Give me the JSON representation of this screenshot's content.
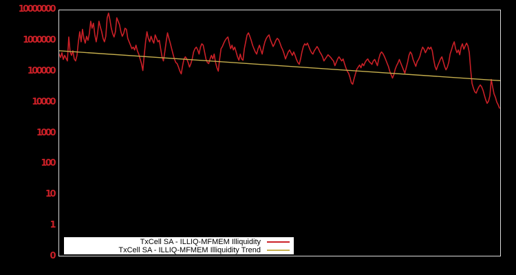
{
  "colors": {
    "background": "#000000",
    "plot_border": "#dcdcdc",
    "series_red": "#cb2027",
    "trend_yellow": "#c5ae4d",
    "axis_label_red": "#cb2027",
    "legend_background": "#ffffff",
    "legend_text": "#000000"
  },
  "chart_data": {
    "type": "line",
    "title": "",
    "xlabel": "",
    "ylabel": "",
    "x_axis": {
      "tick_labels_visible": false
    },
    "y_axis": {
      "scale": "log",
      "tick_labels": [
        "10000000",
        "1000000",
        "100000",
        "10000",
        "1000",
        "100",
        "10",
        "1",
        "0"
      ],
      "top_value": 10000000,
      "decades_shown": 8,
      "grid": false
    },
    "legend": {
      "position": "bottom-center",
      "entries": [
        {
          "label": "TxCell SA - ILLIQ-MFMEM Illiquidity",
          "color": "#cb2027"
        },
        {
          "label": "TxCell SA - ILLIQ-MFMEM Illiquidity Trend",
          "color": "#c5ae4d"
        }
      ]
    },
    "series": [
      {
        "name": "TxCell SA - ILLIQ-MFMEM Illiquidity",
        "color": "#cb2027",
        "values": [
          375000,
          290000,
          415000,
          250000,
          340000,
          275000,
          224000,
          1350000,
          440000,
          340000,
          480000,
          260000,
          224000,
          340000,
          940000,
          2000000,
          940000,
          2400000,
          1220000,
          850000,
          1420000,
          1050000,
          1750000,
          4400000,
          2600000,
          3800000,
          1580000,
          940000,
          1750000,
          4400000,
          2900000,
          2000000,
          1220000,
          940000,
          1420000,
          5700000,
          8100000,
          4900000,
          2600000,
          1750000,
          1350000,
          2000000,
          5700000,
          4400000,
          3400000,
          2000000,
          1420000,
          1750000,
          2600000,
          2400000,
          1220000,
          940000,
          730000,
          560000,
          630000,
          510000,
          730000,
          480000,
          375000,
          260000,
          183000,
          109000,
          340000,
          940000,
          2000000,
          1220000,
          940000,
          1420000,
          1050000,
          850000,
          1580000,
          1220000,
          940000,
          1050000,
          560000,
          305000,
          224000,
          440000,
          940000,
          1840000,
          1220000,
          850000,
          560000,
          375000,
          260000,
          200000,
          183000,
          141000,
          104000,
          85000,
          157000,
          260000,
          305000,
          260000,
          200000,
          141000,
          183000,
          260000,
          440000,
          560000,
          630000,
          510000,
          375000,
          630000,
          810000,
          730000,
          440000,
          260000,
          200000,
          183000,
          260000,
          340000,
          260000,
          375000,
          200000,
          134000,
          104000,
          260000,
          560000,
          660000,
          850000,
          1050000,
          1220000,
          1350000,
          850000,
          560000,
          730000,
          510000,
          630000,
          440000,
          305000,
          236000,
          375000,
          260000,
          236000,
          560000,
          940000,
          1580000,
          1840000,
          1420000,
          1050000,
          730000,
          560000,
          440000,
          375000,
          560000,
          730000,
          510000,
          375000,
          630000,
          940000,
          1220000,
          1420000,
          1580000,
          1100000,
          850000,
          660000,
          810000,
          1050000,
          1220000,
          1100000,
          850000,
          630000,
          510000,
          375000,
          260000,
          340000,
          440000,
          510000,
          415000,
          340000,
          440000,
          340000,
          250000,
          200000,
          174000,
          260000,
          440000,
          660000,
          810000,
          730000,
          850000,
          660000,
          510000,
          415000,
          375000,
          480000,
          560000,
          660000,
          560000,
          440000,
          375000,
          305000,
          224000,
          260000,
          305000,
          356000,
          320000,
          290000,
          250000,
          224000,
          157000,
          200000,
          260000,
          305000,
          260000,
          224000,
          260000,
          183000,
          134000,
          104000,
          89000,
          65000,
          43000,
          39000,
          59000,
          85000,
          121000,
          141000,
          165000,
          134000,
          183000,
          157000,
          200000,
          236000,
          260000,
          213000,
          192000,
          174000,
          224000,
          250000,
          200000,
          157000,
          260000,
          375000,
          440000,
          390000,
          320000,
          250000,
          192000,
          149000,
          104000,
          80000,
          62000,
          80000,
          121000,
          157000,
          192000,
          250000,
          192000,
          149000,
          115000,
          89000,
          134000,
          200000,
          340000,
          440000,
          375000,
          250000,
          192000,
          149000,
          213000,
          250000,
          320000,
          480000,
          630000,
          540000,
          415000,
          510000,
          630000,
          540000,
          630000,
          480000,
          250000,
          149000,
          115000,
          157000,
          200000,
          260000,
          305000,
          213000,
          149000,
          115000,
          141000,
          200000,
          375000,
          510000,
          730000,
          940000,
          560000,
          415000,
          510000,
          356000,
          630000,
          810000,
          540000,
          690000,
          850000,
          690000,
          415000,
          115000,
          41000,
          29000,
          22000,
          20000,
          26000,
          32000,
          37000,
          32000,
          24700,
          17000,
          12000,
          9300,
          10900,
          16400,
          56000,
          32000,
          19000,
          14800,
          10300,
          8400,
          6500
        ]
      },
      {
        "name": "TxCell SA - ILLIQ-MFMEM Illiquidity Trend",
        "color": "#c5ae4d",
        "endpoints_only": true,
        "values": [
          480000,
          51000
        ]
      }
    ]
  }
}
